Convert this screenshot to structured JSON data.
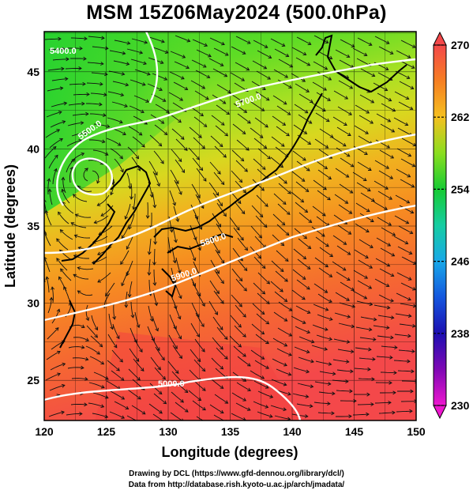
{
  "title": "MSM 15Z06May2024 (500.0hPa)",
  "axes": {
    "xlabel": "Longitude (degrees)",
    "ylabel": "Latitude  (degrees)",
    "xlim": [
      120,
      150
    ],
    "ylim": [
      22.4,
      47.6
    ],
    "xticks": [
      "120",
      "125",
      "130",
      "135",
      "140",
      "145",
      "150"
    ],
    "yticks": [
      "25",
      "30",
      "35",
      "40",
      "45"
    ]
  },
  "colorbar": {
    "min": 230,
    "max": 270,
    "labels": [
      "270",
      "262",
      "254",
      "246",
      "238",
      "230"
    ],
    "colors": [
      "#f4484a",
      "#f67f22",
      "#f5a51f",
      "#dfde1d",
      "#5ddc1f",
      "#17cb33",
      "#16cda2",
      "#18a8e8",
      "#1456de",
      "#1c0fb1",
      "#7f08b4",
      "#ee16cf"
    ]
  },
  "contours": {
    "labels": [
      "5000.0",
      "5400.0",
      "5500.0",
      "5700.0",
      "5800.0",
      "5900.0"
    ]
  },
  "credits": {
    "line1": "Drawing by DCL (https://www.gfd-dennou.org/library/dcl/)",
    "line2": "Data from http://database.rish.kyoto-u.ac.jp/arch/jmadata/"
  }
}
